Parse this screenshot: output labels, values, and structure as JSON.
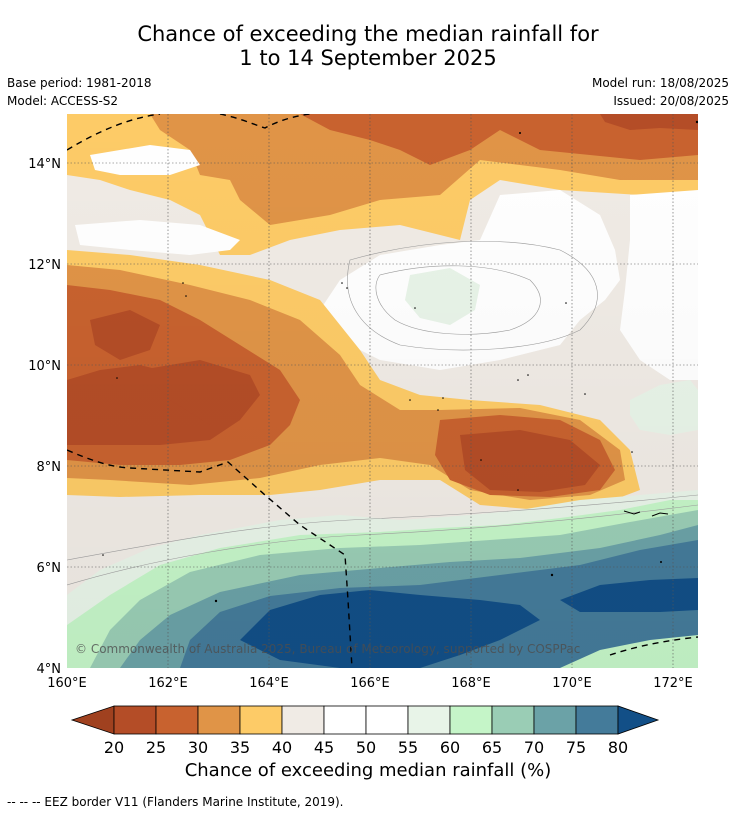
{
  "title": {
    "line1": "Chance of exceeding the median rainfall for",
    "line2": "1 to 14 September 2025"
  },
  "meta": {
    "base_period": "Base period: 1981-2018",
    "model": "Model: ACCESS-S2",
    "model_run": "Model run: 18/08/2025",
    "issued": "Issued: 20/08/2025"
  },
  "map": {
    "copyright": "© Commonwealth of Australia 2025, Bureau of Meteorology, supported by COSPPac",
    "lat_ticks": [
      "4°N",
      "6°N",
      "8°N",
      "10°N",
      "12°N",
      "14°N"
    ],
    "lon_ticks": [
      "160°E",
      "162°E",
      "164°E",
      "166°E",
      "168°E",
      "170°E",
      "172°E"
    ],
    "lat_range": [
      4,
      15.1
    ],
    "lon_range": [
      160,
      172.5
    ],
    "eez_color": "#000000",
    "grid": true
  },
  "colorbar": {
    "title": "Chance of exceeding median rainfall (%)",
    "ticks": [
      "20",
      "25",
      "30",
      "35",
      "40",
      "45",
      "50",
      "55",
      "60",
      "65",
      "70",
      "75",
      "80"
    ],
    "colors": [
      "#a0411f",
      "#b44d27",
      "#c8622f",
      "#e09447",
      "#fdcb67",
      "#f0ebe5",
      "#ffffff",
      "#ffffff",
      "#e8f4e8",
      "#c5f5c8",
      "#9acdb5",
      "#6ba2a7",
      "#447b9a",
      "#124f87"
    ]
  },
  "footnote": "-- -- -- EEZ border V11 (Flanders Marine Institute, 2019)."
}
